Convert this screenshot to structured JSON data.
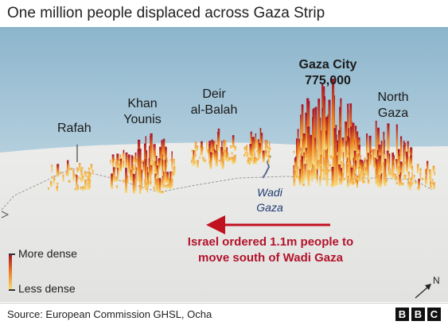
{
  "title": "One million people displaced across Gaza Strip",
  "places": {
    "rafah": "Rafah",
    "khan_younis_line1": "Khan",
    "khan_younis_line2": "Younis",
    "deir_line1": "Deir",
    "deir_line2": "al-Balah",
    "gaza_city_name": "Gaza City",
    "gaza_city_population": "775,000",
    "north_gaza_line1": "North",
    "north_gaza_line2": "Gaza"
  },
  "wadi": {
    "line1": "Wadi",
    "line2": "Gaza"
  },
  "notice": {
    "line1": "Israel ordered 1.1m people to",
    "line2": "move south of Wadi Gaza"
  },
  "legend": {
    "more": "More dense",
    "less": "Less dense"
  },
  "compass": {
    "label": "N"
  },
  "source": "Source: European Commission GHSL, Ocha",
  "logo": [
    "B",
    "B",
    "C"
  ],
  "colors": {
    "sky_top": "#8cb5cc",
    "sky_bottom": "#e3eef3",
    "land": "#e7e7e5",
    "arrow": "#c0121f",
    "density_high": "#a5122a",
    "density_mid": "#ec7f1e",
    "density_low": "#f6dc7c"
  }
}
